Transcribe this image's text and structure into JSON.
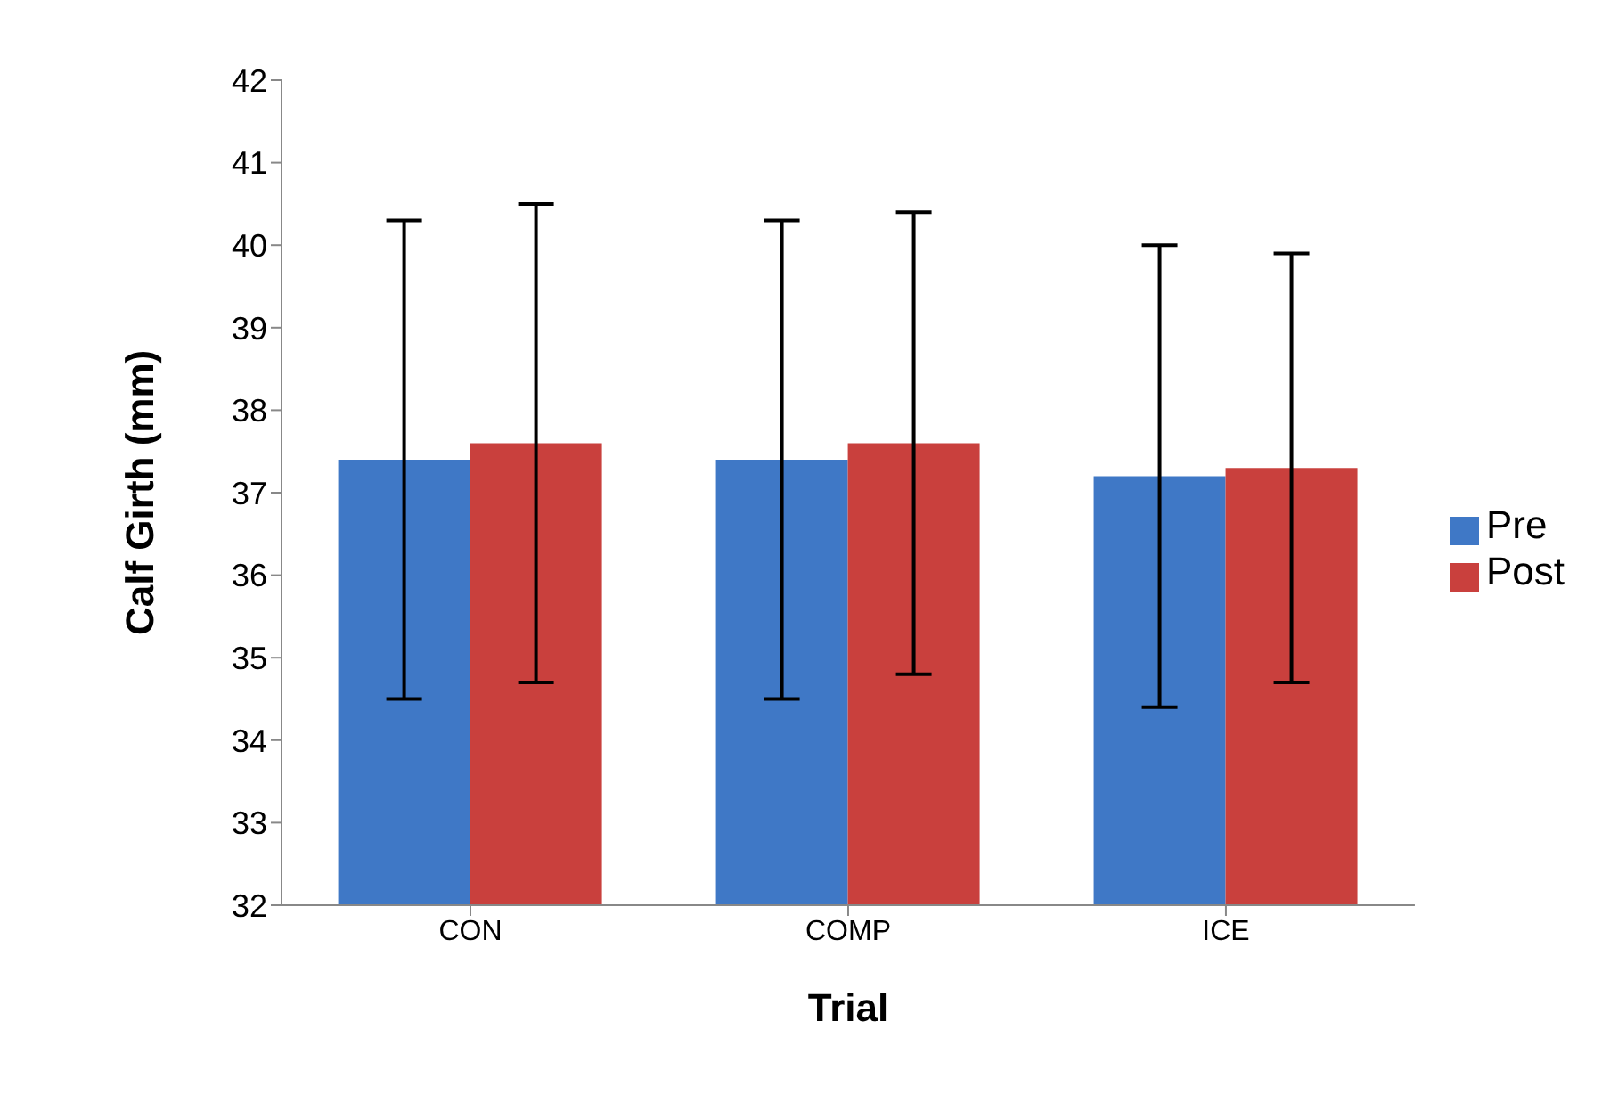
{
  "chart_data": {
    "type": "bar",
    "xlabel": "Trial",
    "ylabel": "Calf Girth (mm)",
    "categories": [
      "CON",
      "COMP",
      "ICE"
    ],
    "series": [
      {
        "name": "Pre",
        "color": "#3f78c6",
        "values": [
          37.4,
          37.4,
          37.2
        ],
        "errors": [
          2.9,
          2.9,
          2.8
        ]
      },
      {
        "name": "Post",
        "color": "#c9403d",
        "values": [
          37.6,
          37.6,
          37.3
        ],
        "errors": [
          2.9,
          2.8,
          2.6
        ]
      }
    ],
    "ylim": [
      32,
      42
    ],
    "yticks": [
      32,
      33,
      34,
      35,
      36,
      37,
      38,
      39,
      40,
      41,
      42
    ],
    "grid": false,
    "legend": "right"
  }
}
